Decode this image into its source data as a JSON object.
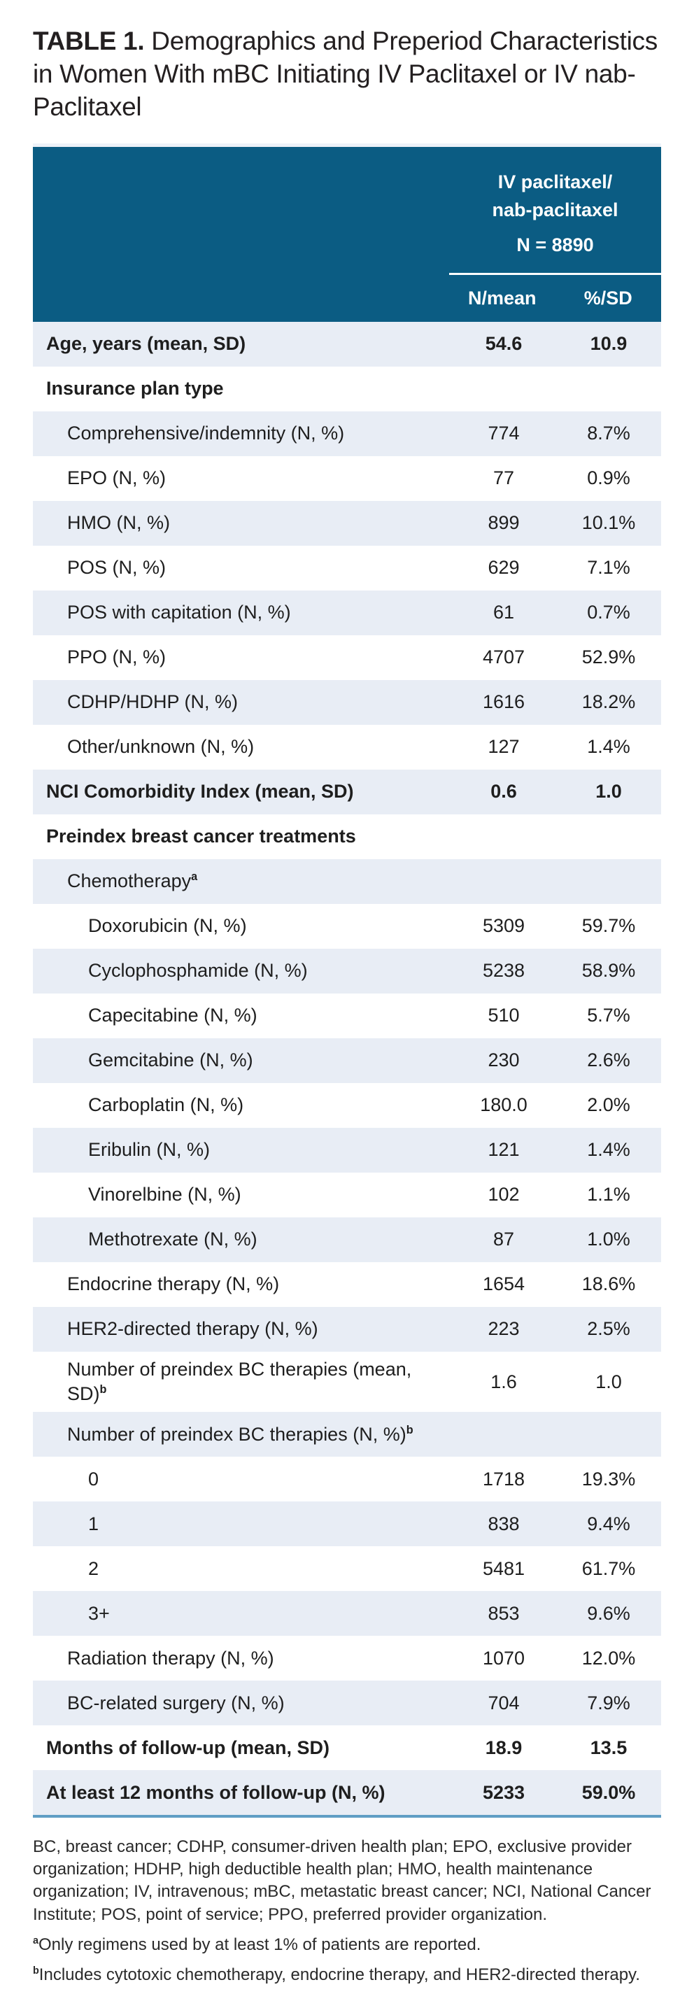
{
  "title": {
    "label": "TABLE 1.",
    "text": " Demographics and Preperiod Characteristics in Women With mBC Initiating IV Paclitaxel or IV nab-Paclitaxel"
  },
  "header": {
    "group_line1": "IV paclitaxel/",
    "group_line2": "nab-paclitaxel",
    "n_label": "N = 8890",
    "col1": "N/mean",
    "col2": "%/SD"
  },
  "colors": {
    "header_bg": "#0b5c83",
    "shaded_row": "#e8edf5",
    "bottom_rule": "#5f9ec4"
  },
  "rows": [
    {
      "label": "Age, years (mean, SD)",
      "sup": "",
      "indent": 0,
      "bold": true,
      "shaded": true,
      "v1": "54.6",
      "v2": "10.9"
    },
    {
      "label": "Insurance plan type",
      "sup": "",
      "indent": 0,
      "bold": true,
      "shaded": false,
      "v1": "",
      "v2": ""
    },
    {
      "label": "Comprehensive/indemnity (N, %)",
      "sup": "",
      "indent": 1,
      "bold": false,
      "shaded": true,
      "v1": "774",
      "v2": "8.7%"
    },
    {
      "label": "EPO (N, %)",
      "sup": "",
      "indent": 1,
      "bold": false,
      "shaded": false,
      "v1": "77",
      "v2": "0.9%"
    },
    {
      "label": "HMO (N, %)",
      "sup": "",
      "indent": 1,
      "bold": false,
      "shaded": true,
      "v1": "899",
      "v2": "10.1%"
    },
    {
      "label": "POS (N, %)",
      "sup": "",
      "indent": 1,
      "bold": false,
      "shaded": false,
      "v1": "629",
      "v2": "7.1%"
    },
    {
      "label": "POS with capitation (N, %)",
      "sup": "",
      "indent": 1,
      "bold": false,
      "shaded": true,
      "v1": "61",
      "v2": "0.7%"
    },
    {
      "label": "PPO (N, %)",
      "sup": "",
      "indent": 1,
      "bold": false,
      "shaded": false,
      "v1": "4707",
      "v2": "52.9%"
    },
    {
      "label": "CDHP/HDHP (N, %)",
      "sup": "",
      "indent": 1,
      "bold": false,
      "shaded": true,
      "v1": "1616",
      "v2": "18.2%"
    },
    {
      "label": "Other/unknown (N, %)",
      "sup": "",
      "indent": 1,
      "bold": false,
      "shaded": false,
      "v1": "127",
      "v2": "1.4%"
    },
    {
      "label": "NCI Comorbidity Index (mean, SD)",
      "sup": "",
      "indent": 0,
      "bold": true,
      "shaded": true,
      "v1": "0.6",
      "v2": "1.0"
    },
    {
      "label": "Preindex breast cancer treatments",
      "sup": "",
      "indent": 0,
      "bold": true,
      "shaded": false,
      "v1": "",
      "v2": ""
    },
    {
      "label": "Chemotherapy",
      "sup": "a",
      "indent": 1,
      "bold": false,
      "shaded": true,
      "v1": "",
      "v2": ""
    },
    {
      "label": "Doxorubicin (N, %)",
      "sup": "",
      "indent": 2,
      "bold": false,
      "shaded": false,
      "v1": "5309",
      "v2": "59.7%"
    },
    {
      "label": "Cyclophosphamide (N, %)",
      "sup": "",
      "indent": 2,
      "bold": false,
      "shaded": true,
      "v1": "5238",
      "v2": "58.9%"
    },
    {
      "label": "Capecitabine (N, %)",
      "sup": "",
      "indent": 2,
      "bold": false,
      "shaded": false,
      "v1": "510",
      "v2": "5.7%"
    },
    {
      "label": "Gemcitabine (N, %)",
      "sup": "",
      "indent": 2,
      "bold": false,
      "shaded": true,
      "v1": "230",
      "v2": "2.6%"
    },
    {
      "label": "Carboplatin (N, %)",
      "sup": "",
      "indent": 2,
      "bold": false,
      "shaded": false,
      "v1": "180.0",
      "v2": "2.0%"
    },
    {
      "label": "Eribulin (N, %)",
      "sup": "",
      "indent": 2,
      "bold": false,
      "shaded": true,
      "v1": "121",
      "v2": "1.4%"
    },
    {
      "label": "Vinorelbine (N, %)",
      "sup": "",
      "indent": 2,
      "bold": false,
      "shaded": false,
      "v1": "102",
      "v2": "1.1%"
    },
    {
      "label": "Methotrexate (N, %)",
      "sup": "",
      "indent": 2,
      "bold": false,
      "shaded": true,
      "v1": "87",
      "v2": "1.0%"
    },
    {
      "label": "Endocrine therapy (N, %)",
      "sup": "",
      "indent": 1,
      "bold": false,
      "shaded": false,
      "v1": "1654",
      "v2": "18.6%"
    },
    {
      "label": "HER2-directed therapy (N, %)",
      "sup": "",
      "indent": 1,
      "bold": false,
      "shaded": true,
      "v1": "223",
      "v2": "2.5%"
    },
    {
      "label": "Number of preindex BC therapies (mean, SD)",
      "sup": "b",
      "indent": 1,
      "bold": false,
      "shaded": false,
      "v1": "1.6",
      "v2": "1.0"
    },
    {
      "label": "Number of preindex BC therapies (N, %)",
      "sup": "b",
      "indent": 1,
      "bold": false,
      "shaded": true,
      "v1": "",
      "v2": ""
    },
    {
      "label": "0",
      "sup": "",
      "indent": 2,
      "bold": false,
      "shaded": false,
      "v1": "1718",
      "v2": "19.3%"
    },
    {
      "label": "1",
      "sup": "",
      "indent": 2,
      "bold": false,
      "shaded": true,
      "v1": "838",
      "v2": "9.4%"
    },
    {
      "label": "2",
      "sup": "",
      "indent": 2,
      "bold": false,
      "shaded": false,
      "v1": "5481",
      "v2": "61.7%"
    },
    {
      "label": "3+",
      "sup": "",
      "indent": 2,
      "bold": false,
      "shaded": true,
      "v1": "853",
      "v2": "9.6%"
    },
    {
      "label": "Radiation therapy (N, %)",
      "sup": "",
      "indent": 1,
      "bold": false,
      "shaded": false,
      "v1": "1070",
      "v2": "12.0%"
    },
    {
      "label": "BC-related surgery (N, %)",
      "sup": "",
      "indent": 1,
      "bold": false,
      "shaded": true,
      "v1": "704",
      "v2": "7.9%"
    },
    {
      "label": "Months of follow-up (mean, SD)",
      "sup": "",
      "indent": 0,
      "bold": true,
      "shaded": false,
      "v1": "18.9",
      "v2": "13.5"
    },
    {
      "label": "At least 12 months of follow-up (N, %)",
      "sup": "",
      "indent": 0,
      "bold": true,
      "shaded": true,
      "v1": "5233",
      "v2": "59.0%"
    }
  ],
  "footnotes": {
    "abbreviations": "BC, breast cancer; CDHP, consumer-driven health plan; EPO, exclusive provider organization; HDHP, high deductible health plan; HMO, health maintenance organization; IV, intravenous; mBC, metastatic breast cancer; NCI, National Cancer Institute; POS, point of service; PPO, preferred provider organization.",
    "a_marker": "a",
    "a_text": "Only regimens used by at least 1% of patients are reported.",
    "b_marker": "b",
    "b_text": "Includes cytotoxic chemotherapy, endocrine therapy, and HER2-directed therapy."
  }
}
